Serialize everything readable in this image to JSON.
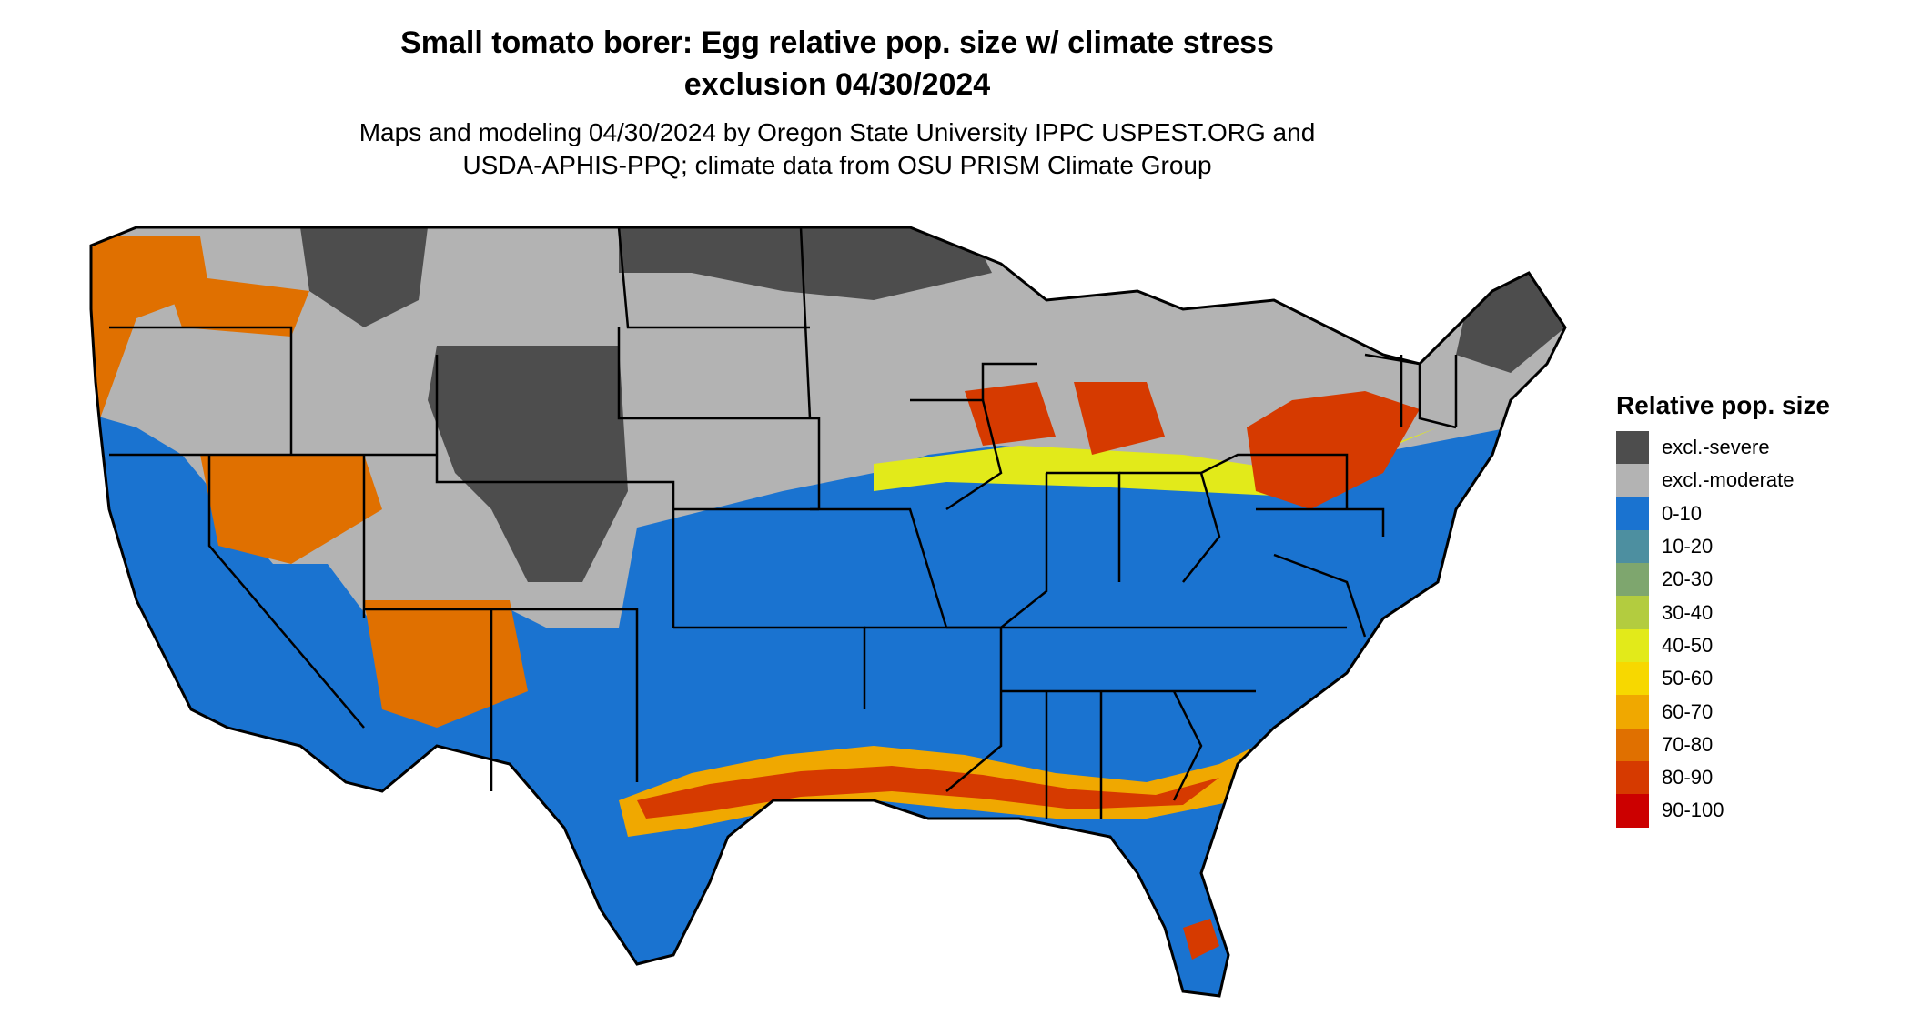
{
  "title_line1": "Small tomato borer: Egg relative pop. size w/ climate stress",
  "title_line2": "exclusion 04/30/2024",
  "subtitle_line1": "Maps and modeling 04/30/2024 by Oregon State University IPPC USPEST.ORG and",
  "subtitle_line2": "USDA-APHIS-PPQ; climate data from OSU PRISM Climate Group",
  "legend": {
    "title": "Relative pop. size",
    "items": [
      {
        "label": "excl.-severe",
        "color": "#4d4d4d"
      },
      {
        "label": "excl.-moderate",
        "color": "#b3b3b3"
      },
      {
        "label": "0-10",
        "color": "#1a73d0"
      },
      {
        "label": "10-20",
        "color": "#4d8fa0"
      },
      {
        "label": "20-30",
        "color": "#7ea66e"
      },
      {
        "label": "30-40",
        "color": "#b3cc3f"
      },
      {
        "label": "40-50",
        "color": "#e2ea1a"
      },
      {
        "label": "50-60",
        "color": "#f7d800"
      },
      {
        "label": "60-70",
        "color": "#f0a800"
      },
      {
        "label": "70-80",
        "color": "#e07000"
      },
      {
        "label": "80-90",
        "color": "#d63a00"
      },
      {
        "label": "90-100",
        "color": "#cc0000"
      }
    ]
  }
}
